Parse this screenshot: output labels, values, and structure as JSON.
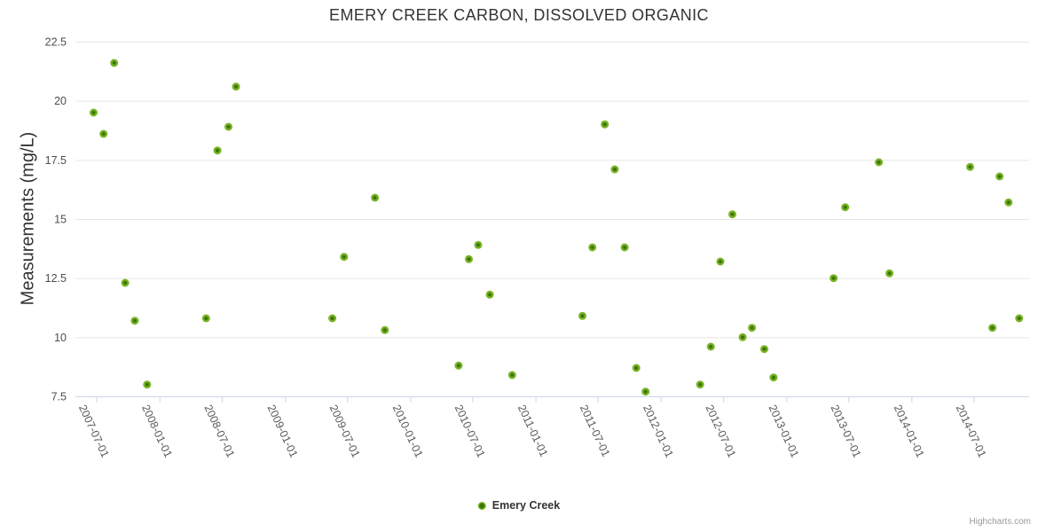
{
  "credits": {
    "label": "Highcharts.com"
  },
  "chart_data": {
    "type": "scatter",
    "title": "EMERY CREEK CARBON, DISSOLVED ORGANIC",
    "xlabel": "",
    "ylabel": "Measurements (mg/L)",
    "ylim": [
      7.5,
      22.5
    ],
    "yticks": [
      7.5,
      10,
      12.5,
      15,
      17.5,
      20,
      22.5
    ],
    "ytick_labels": [
      "7.5",
      "10",
      "12.5",
      "15",
      "17.5",
      "20",
      "22.5"
    ],
    "xlim": [
      "2007-05-01",
      "2014-12-10"
    ],
    "xticks": [
      "2007-07-01",
      "2008-01-01",
      "2008-07-01",
      "2009-01-01",
      "2009-07-01",
      "2010-01-01",
      "2010-07-01",
      "2011-01-01",
      "2011-07-01",
      "2012-01-01",
      "2012-07-01",
      "2013-01-01",
      "2013-07-01",
      "2014-01-01",
      "2014-07-01"
    ],
    "grid": "horizontal",
    "legend_position": "bottom-center",
    "colors": {
      "marker_fill": "#79b426",
      "marker_core": "#3a7203",
      "gridline": "#e6e6e6",
      "axis_line": "#ccd6eb",
      "title_text": "#333333",
      "tick_text": "#5a5a5a"
    },
    "series": [
      {
        "name": "Emery Creek",
        "points": [
          [
            "2007-06-23",
            19.5
          ],
          [
            "2007-07-22",
            18.6
          ],
          [
            "2007-08-22",
            21.6
          ],
          [
            "2007-09-23",
            12.3
          ],
          [
            "2007-10-21",
            10.7
          ],
          [
            "2007-11-26",
            8.0
          ],
          [
            "2008-05-16",
            10.8
          ],
          [
            "2008-06-18",
            17.9
          ],
          [
            "2008-07-20",
            18.9
          ],
          [
            "2008-08-11",
            20.6
          ],
          [
            "2009-05-19",
            10.8
          ],
          [
            "2009-06-22",
            13.4
          ],
          [
            "2009-09-20",
            15.9
          ],
          [
            "2009-10-19",
            10.3
          ],
          [
            "2010-05-22",
            8.8
          ],
          [
            "2010-06-21",
            13.3
          ],
          [
            "2010-07-18",
            13.9
          ],
          [
            "2010-08-21",
            11.8
          ],
          [
            "2010-10-25",
            8.4
          ],
          [
            "2011-05-18",
            10.9
          ],
          [
            "2011-06-16",
            13.8
          ],
          [
            "2011-07-22",
            19.0
          ],
          [
            "2011-08-20",
            17.1
          ],
          [
            "2011-09-18",
            13.8
          ],
          [
            "2011-10-22",
            8.7
          ],
          [
            "2011-11-18",
            7.7
          ],
          [
            "2012-04-25",
            8.0
          ],
          [
            "2012-05-26",
            9.6
          ],
          [
            "2012-06-23",
            13.2
          ],
          [
            "2012-07-28",
            15.2
          ],
          [
            "2012-08-27",
            10.0
          ],
          [
            "2012-09-23",
            10.4
          ],
          [
            "2012-10-29",
            9.5
          ],
          [
            "2012-11-25",
            8.3
          ],
          [
            "2013-05-19",
            12.5
          ],
          [
            "2013-06-22",
            15.5
          ],
          [
            "2013-09-28",
            17.4
          ],
          [
            "2013-10-29",
            12.7
          ],
          [
            "2014-06-21",
            17.2
          ],
          [
            "2014-08-25",
            10.4
          ],
          [
            "2014-09-15",
            16.8
          ],
          [
            "2014-10-11",
            15.7
          ],
          [
            "2014-11-11",
            10.8
          ]
        ]
      }
    ]
  }
}
